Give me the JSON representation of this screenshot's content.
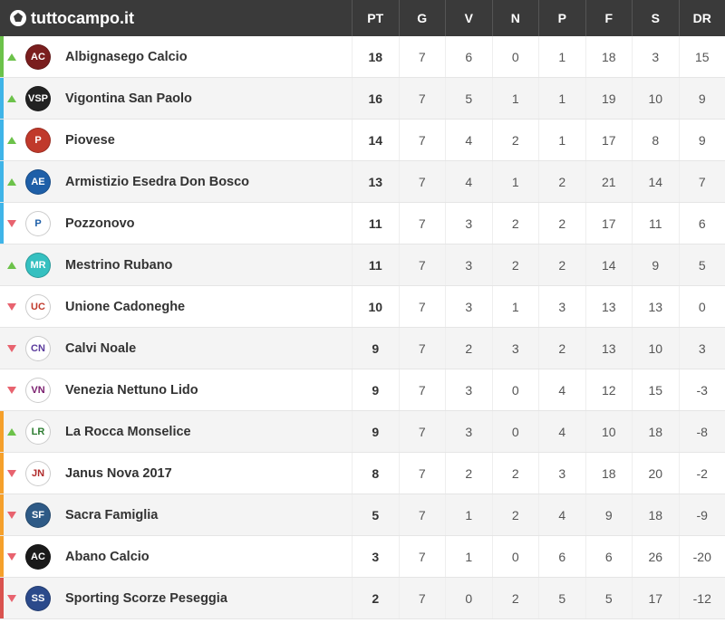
{
  "brand": "tuttocampo.it",
  "columns": [
    "PT",
    "G",
    "V",
    "N",
    "P",
    "F",
    "S",
    "DR"
  ],
  "indicator_colors": {
    "top": "#6cc24a",
    "mid": "#3fb4e8",
    "low": "#f5a02b",
    "bot": "#d9534f"
  },
  "rows": [
    {
      "ind": "top",
      "arrow": "up",
      "crest_bg": "#7a1e1e",
      "crest_txt": "AC",
      "name": "Albignasego Calcio",
      "pt": 18,
      "g": 7,
      "v": 6,
      "n": 0,
      "p": 1,
      "f": 18,
      "s": 3,
      "dr": 15
    },
    {
      "ind": "mid",
      "arrow": "up",
      "crest_bg": "#222222",
      "crest_txt": "VSP",
      "name": "Vigontina San Paolo",
      "pt": 16,
      "g": 7,
      "v": 5,
      "n": 1,
      "p": 1,
      "f": 19,
      "s": 10,
      "dr": 9
    },
    {
      "ind": "mid",
      "arrow": "up",
      "crest_bg": "#c0392b",
      "crest_txt": "P",
      "name": "Piovese",
      "pt": 14,
      "g": 7,
      "v": 4,
      "n": 2,
      "p": 1,
      "f": 17,
      "s": 8,
      "dr": 9
    },
    {
      "ind": "mid",
      "arrow": "up",
      "crest_bg": "#1e5fa8",
      "crest_txt": "AE",
      "name": "Armistizio Esedra Don Bosco",
      "pt": 13,
      "g": 7,
      "v": 4,
      "n": 1,
      "p": 2,
      "f": 21,
      "s": 14,
      "dr": 7
    },
    {
      "ind": "mid",
      "arrow": "down",
      "crest_bg": "#ffffff",
      "crest_txt": "P",
      "crest_fg": "#1e5fa8",
      "name": "Pozzonovo",
      "pt": 11,
      "g": 7,
      "v": 3,
      "n": 2,
      "p": 2,
      "f": 17,
      "s": 11,
      "dr": 6
    },
    {
      "ind": "none",
      "arrow": "up",
      "crest_bg": "#35c0c0",
      "crest_txt": "MR",
      "name": "Mestrino Rubano",
      "pt": 11,
      "g": 7,
      "v": 3,
      "n": 2,
      "p": 2,
      "f": 14,
      "s": 9,
      "dr": 5
    },
    {
      "ind": "none",
      "arrow": "down",
      "crest_bg": "#ffffff",
      "crest_txt": "UC",
      "crest_fg": "#c0392b",
      "name": "Unione Cadoneghe",
      "pt": 10,
      "g": 7,
      "v": 3,
      "n": 1,
      "p": 3,
      "f": 13,
      "s": 13,
      "dr": 0
    },
    {
      "ind": "none",
      "arrow": "down",
      "crest_bg": "#ffffff",
      "crest_txt": "CN",
      "crest_fg": "#5a3a9c",
      "name": "Calvi Noale",
      "pt": 9,
      "g": 7,
      "v": 2,
      "n": 3,
      "p": 2,
      "f": 13,
      "s": 10,
      "dr": 3
    },
    {
      "ind": "none",
      "arrow": "down",
      "crest_bg": "#ffffff",
      "crest_txt": "VN",
      "crest_fg": "#7a1e6e",
      "name": "Venezia Nettuno Lido",
      "pt": 9,
      "g": 7,
      "v": 3,
      "n": 0,
      "p": 4,
      "f": 12,
      "s": 15,
      "dr": -3
    },
    {
      "ind": "low",
      "arrow": "up",
      "crest_bg": "#ffffff",
      "crest_txt": "LR",
      "crest_fg": "#2e7d32",
      "name": "La Rocca Monselice",
      "pt": 9,
      "g": 7,
      "v": 3,
      "n": 0,
      "p": 4,
      "f": 10,
      "s": 18,
      "dr": -8
    },
    {
      "ind": "low",
      "arrow": "down",
      "crest_bg": "#ffffff",
      "crest_txt": "JN",
      "crest_fg": "#b02a2a",
      "name": "Janus Nova 2017",
      "pt": 8,
      "g": 7,
      "v": 2,
      "n": 2,
      "p": 3,
      "f": 18,
      "s": 20,
      "dr": -2
    },
    {
      "ind": "low",
      "arrow": "down",
      "crest_bg": "#2e5a86",
      "crest_txt": "SF",
      "name": "Sacra Famiglia",
      "pt": 5,
      "g": 7,
      "v": 1,
      "n": 2,
      "p": 4,
      "f": 9,
      "s": 18,
      "dr": -9
    },
    {
      "ind": "low",
      "arrow": "down",
      "crest_bg": "#1a1a1a",
      "crest_txt": "AC",
      "name": "Abano Calcio",
      "pt": 3,
      "g": 7,
      "v": 1,
      "n": 0,
      "p": 6,
      "f": 6,
      "s": 26,
      "dr": -20
    },
    {
      "ind": "bot",
      "arrow": "down",
      "crest_bg": "#2b4a8b",
      "crest_txt": "SS",
      "name": "Sporting Scorze Peseggia",
      "pt": 2,
      "g": 7,
      "v": 0,
      "n": 2,
      "p": 5,
      "f": 5,
      "s": 17,
      "dr": -12
    }
  ]
}
